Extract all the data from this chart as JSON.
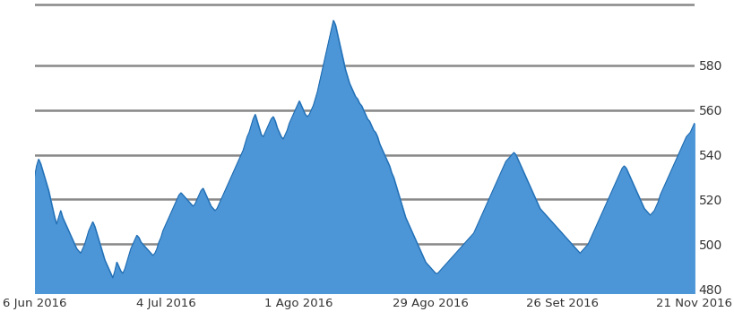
{
  "title": "",
  "x_labels": [
    "6 Jun 2016",
    "4 Jul 2016",
    "1 Ago 2016",
    "29 Ago 2016",
    "26 Set 2016",
    "21 Nov 2016"
  ],
  "yticks": [
    480,
    500,
    520,
    540,
    560,
    580
  ],
  "ylim": [
    478,
    608
  ],
  "line_color": "#1F6BB0",
  "fill_color": "#4C96D7",
  "fill_alpha": 1.0,
  "grid_color": "#888888",
  "grid_linewidth": 1.8,
  "background_color": "#FFFFFF",
  "series": [
    530,
    535,
    538,
    536,
    533,
    530,
    527,
    524,
    520,
    516,
    512,
    509,
    512,
    515,
    512,
    510,
    508,
    506,
    504,
    502,
    500,
    498,
    497,
    496,
    498,
    500,
    503,
    506,
    508,
    510,
    508,
    505,
    502,
    499,
    496,
    493,
    491,
    489,
    487,
    485,
    488,
    492,
    490,
    488,
    487,
    489,
    492,
    495,
    498,
    500,
    502,
    504,
    503,
    501,
    500,
    499,
    498,
    497,
    496,
    495,
    496,
    498,
    501,
    503,
    506,
    508,
    510,
    512,
    514,
    516,
    518,
    520,
    522,
    523,
    522,
    521,
    520,
    519,
    518,
    517,
    518,
    520,
    522,
    524,
    525,
    523,
    521,
    519,
    517,
    516,
    515,
    516,
    518,
    520,
    522,
    524,
    526,
    528,
    530,
    532,
    534,
    536,
    538,
    540,
    542,
    545,
    548,
    550,
    553,
    556,
    558,
    555,
    552,
    549,
    548,
    550,
    552,
    554,
    556,
    557,
    555,
    552,
    550,
    548,
    547,
    549,
    551,
    554,
    556,
    558,
    560,
    562,
    564,
    562,
    560,
    558,
    557,
    558,
    560,
    562,
    565,
    568,
    572,
    576,
    580,
    584,
    588,
    592,
    596,
    600,
    598,
    594,
    590,
    586,
    582,
    578,
    575,
    572,
    570,
    568,
    566,
    565,
    563,
    562,
    560,
    558,
    556,
    555,
    553,
    551,
    550,
    548,
    545,
    543,
    541,
    539,
    537,
    535,
    532,
    530,
    527,
    524,
    521,
    518,
    515,
    512,
    510,
    508,
    506,
    504,
    502,
    500,
    498,
    496,
    494,
    492,
    491,
    490,
    489,
    488,
    487,
    487,
    488,
    489,
    490,
    491,
    492,
    493,
    494,
    495,
    496,
    497,
    498,
    499,
    500,
    501,
    502,
    503,
    504,
    505,
    507,
    509,
    511,
    513,
    515,
    517,
    519,
    521,
    523,
    525,
    527,
    529,
    531,
    533,
    535,
    537,
    538,
    539,
    540,
    541,
    540,
    538,
    536,
    534,
    532,
    530,
    528,
    526,
    524,
    522,
    520,
    518,
    516,
    515,
    514,
    513,
    512,
    511,
    510,
    509,
    508,
    507,
    506,
    505,
    504,
    503,
    502,
    501,
    500,
    499,
    498,
    497,
    496,
    497,
    498,
    499,
    500,
    502,
    504,
    506,
    508,
    510,
    512,
    514,
    516,
    518,
    520,
    522,
    524,
    526,
    528,
    530,
    532,
    534,
    535,
    534,
    532,
    530,
    528,
    526,
    524,
    522,
    520,
    518,
    516,
    515,
    514,
    513,
    514,
    515,
    517,
    519,
    522,
    524,
    526,
    528,
    530,
    532,
    534,
    536,
    538,
    540,
    542,
    544,
    546,
    548,
    549,
    550,
    552,
    554
  ]
}
